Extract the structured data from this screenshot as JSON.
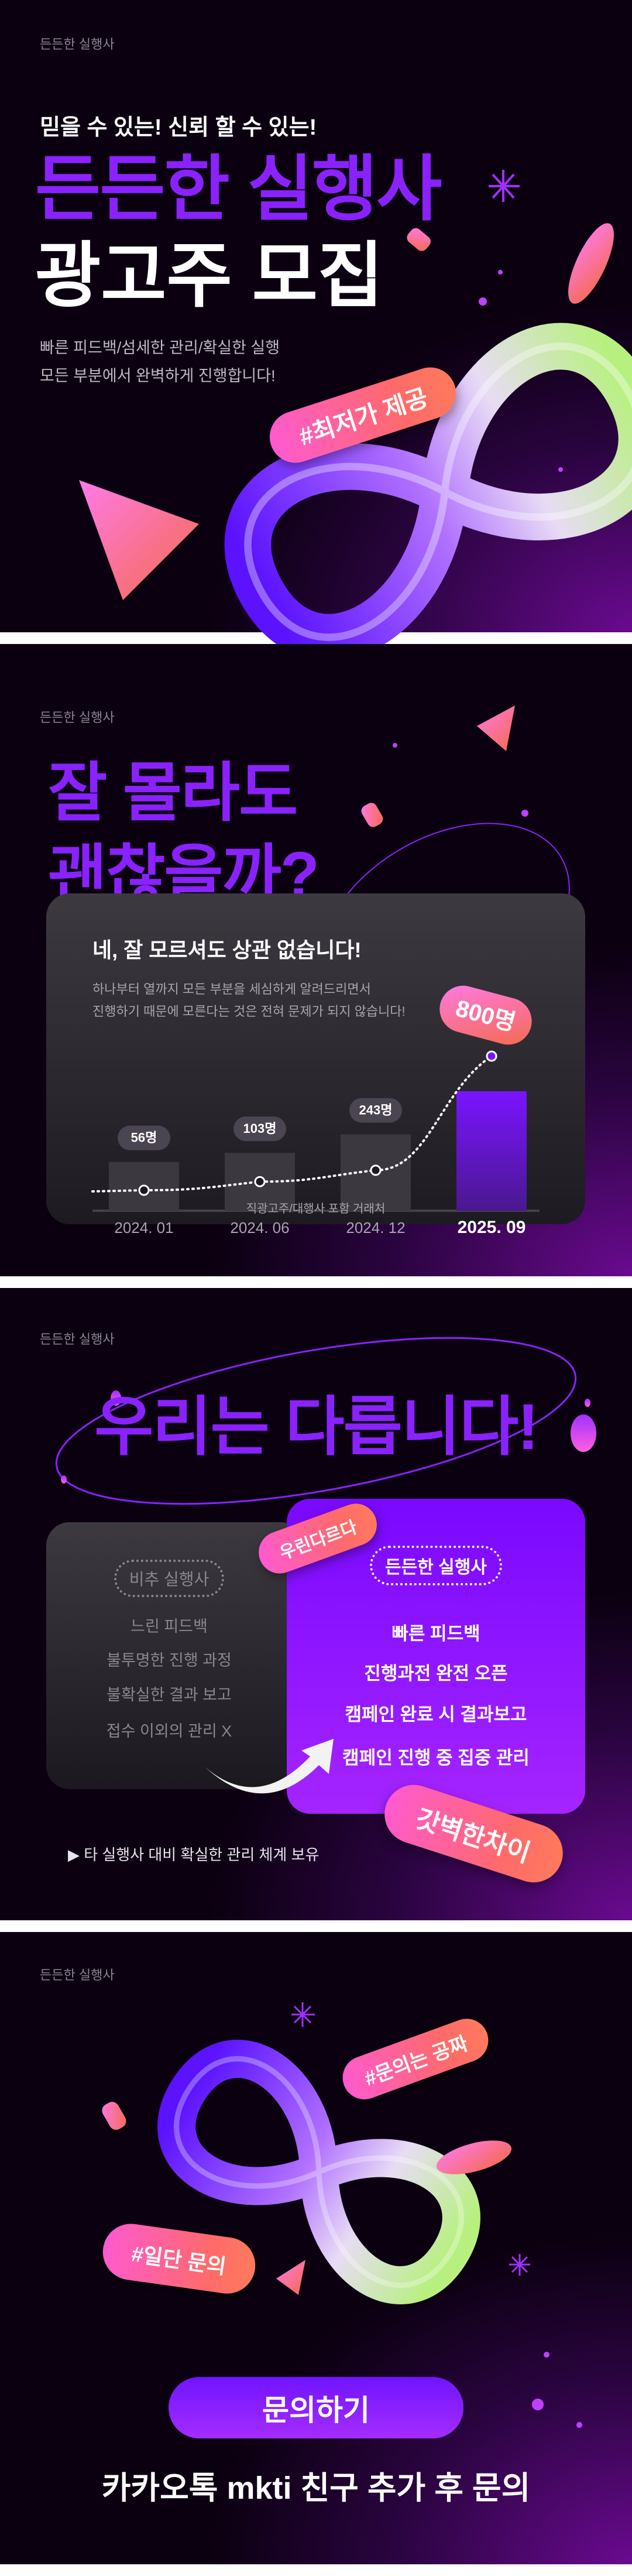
{
  "brand": "든든한 실행사",
  "hero": {
    "tagline": "믿을 수 있는! 신뢰 할 수 있는!",
    "title_line1": "든든한 실행사",
    "title_line2": "광고주 모집",
    "desc_line1": "빠른 피드백/섬세한 관리/확실한 실행",
    "desc_line2": "모든 부분에서 완벽하게 진행합니다!",
    "badge": "#최저가 제공"
  },
  "growth": {
    "title_line1": "잘 몰라도",
    "title_line2": "괜찮을까?",
    "card_title": "네, 잘 모르셔도 상관 없습니다!",
    "card_desc_line1": "하나부터 열까지 모든 부분을 세심하게 알려드리면서",
    "card_desc_line2": "진행하기 때문에 모른다는 것은 전혀 문제가 되지 않습니다!",
    "footnote": "직광고주/대행사 포함 거래처"
  },
  "chart_data": {
    "type": "bar",
    "categories": [
      "2024. 01",
      "2024. 06",
      "2024. 12",
      "2025. 09"
    ],
    "values": [
      56,
      103,
      243,
      800
    ],
    "value_labels": [
      "56명",
      "103명",
      "243명",
      "800명"
    ],
    "highlight_color": "#7a14ff",
    "bar_color": "#3c3840"
  },
  "compare": {
    "title": "우리는 다릅니다!",
    "left_badge": "비추 실행사",
    "left_items": [
      "느린 피드백",
      "불투명한 진행 과정",
      "불확실한 결과 보고",
      "접수 이외의 관리 X"
    ],
    "right_badge": "든든한 실행사",
    "right_items": [
      "빠른 피드백",
      "진행과전 완전 오픈",
      "캠페인 완료 시 결과보고",
      "캠페인 진행 중 집중 관리"
    ],
    "sticker_top": "우린다르다",
    "sticker_bottom": "갓벽한차이",
    "note": "▶ 타 실행사 대비 확실한 관리 체계 보유"
  },
  "contact": {
    "sticker_1": "#문의는 공짜",
    "sticker_2": "#일단 문의",
    "button": "문의하기",
    "instruction": "카카오톡 mkti 친구 추가 후 문의"
  },
  "colors": {
    "accent": "#8a22ff",
    "pink": "#ff5ad0",
    "coral": "#ff6a5c",
    "background": "#0b0010"
  }
}
